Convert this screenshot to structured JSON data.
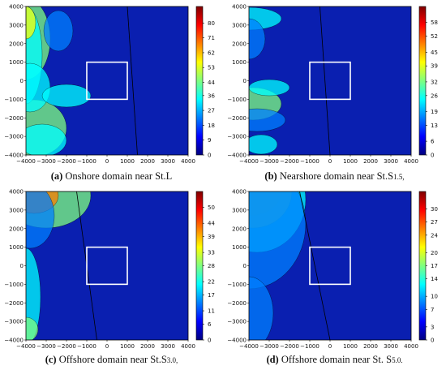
{
  "colors": {
    "background": "#0a1fb0",
    "frame": "#000000",
    "white_box": "#ffffff"
  },
  "chart_data": [
    {
      "type": "heatmap",
      "caption": {
        "letter": "(a)",
        "text": " Onshore domain near St.L",
        "sub": ""
      },
      "x_ticks": [
        "−4000",
        "−3000",
        "−2000",
        "−1000",
        "0",
        "1000",
        "2000",
        "3000",
        "4000"
      ],
      "y_ticks": [
        "4000",
        "3000",
        "2000",
        "1000",
        "0",
        "−1000",
        "−2000",
        "−3000",
        "−4000"
      ],
      "xlim": [
        -4000,
        4000
      ],
      "ylim": [
        -4000,
        4000
      ],
      "colorbar": {
        "min": 0,
        "max": 90,
        "ticks": [
          "80",
          "71",
          "62",
          "53",
          "44",
          "36",
          "27",
          "18",
          "9",
          "0"
        ]
      },
      "box": {
        "x": [
          -1000,
          1000
        ],
        "y": [
          -1000,
          1000
        ]
      },
      "domain_line_x_top": 1000,
      "domain_line_x_bottom": 1500
    },
    {
      "type": "heatmap",
      "caption": {
        "letter": "(b)",
        "text": " Nearshore domain near St.S",
        "sub": "1.5,"
      },
      "x_ticks": [
        "−4000",
        "−3000",
        "−2000",
        "−1000",
        "0",
        "1000",
        "2000",
        "3000",
        "4000"
      ],
      "y_ticks": [
        "4000",
        "3000",
        "2000",
        "1000",
        "0",
        "−1000",
        "−2000",
        "−3000",
        "−4000"
      ],
      "xlim": [
        -4000,
        4000
      ],
      "ylim": [
        -4000,
        4000
      ],
      "colorbar": {
        "min": 0,
        "max": 65,
        "ticks": [
          "58",
          "52",
          "45",
          "39",
          "32",
          "26",
          "19",
          "13",
          "6",
          "0"
        ]
      },
      "box": {
        "x": [
          -1000,
          1000
        ],
        "y": [
          -1000,
          1000
        ]
      },
      "domain_line_x_top": -500,
      "domain_line_x_bottom": 0
    },
    {
      "type": "heatmap",
      "caption": {
        "letter": "(c)",
        "text": " Offshore domain near St.S",
        "sub": "3.0,"
      },
      "x_ticks": [
        "−4000",
        "−3000",
        "−2000",
        "−1000",
        "0",
        "1000",
        "2000",
        "3000",
        "4000"
      ],
      "y_ticks": [
        "4000",
        "3000",
        "2000",
        "1000",
        "0",
        "−1000",
        "−2000",
        "−3000",
        "−4000"
      ],
      "xlim": [
        -4000,
        4000
      ],
      "ylim": [
        -4000,
        4000
      ],
      "colorbar": {
        "min": 0,
        "max": 56,
        "ticks": [
          "50",
          "44",
          "39",
          "33",
          "28",
          "22",
          "17",
          "11",
          "6",
          "0"
        ]
      },
      "box": {
        "x": [
          -1000,
          1000
        ],
        "y": [
          -1000,
          1000
        ]
      },
      "domain_line_x_top": -1500,
      "domain_line_x_bottom": -500
    },
    {
      "type": "heatmap",
      "caption": {
        "letter": "(d)",
        "text": " Offshore domain near St. S",
        "sub": "5.0."
      },
      "x_ticks": [
        "−4000",
        "−3000",
        "−2000",
        "−1000",
        "0",
        "1000",
        "2000",
        "3000",
        "4000"
      ],
      "y_ticks": [
        "4000",
        "3000",
        "2000",
        "1000",
        "0",
        "−1000",
        "−2000",
        "−3000",
        "−4000"
      ],
      "xlim": [
        -4000,
        4000
      ],
      "ylim": [
        -4000,
        4000
      ],
      "colorbar": {
        "min": 0,
        "max": 34,
        "ticks": [
          "30",
          "27",
          "24",
          "20",
          "17",
          "14",
          "10",
          "7",
          "3",
          "0"
        ]
      },
      "box": {
        "x": [
          -1000,
          1000
        ],
        "y": [
          -1000,
          1000
        ]
      },
      "domain_line_x_top": -1500,
      "domain_line_x_bottom": 0
    }
  ]
}
